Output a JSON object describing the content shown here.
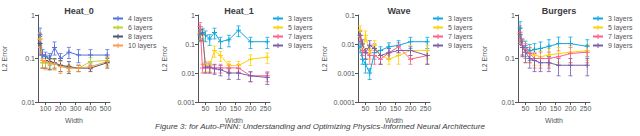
{
  "annotations": [
    "Figure 3: for Auto-PINN: Understanding and Optimizing Physics-Informed Neural Architecture"
  ],
  "chart_data": [
    {
      "type": "line",
      "title": "Heat_0",
      "xlabel": "Width",
      "ylabel": "L2 Error",
      "x": [
        64,
        80,
        100,
        128,
        160,
        200,
        256,
        320,
        400,
        512
      ],
      "series": [
        {
          "name": "4 layers",
          "values": [
            0.35,
            0.12,
            0.11,
            0.1,
            0.18,
            0.1,
            0.14,
            0.12,
            0.12,
            0.12
          ],
          "errors": [
            0.15,
            0.04,
            0.03,
            0.03,
            0.06,
            0.03,
            0.04,
            0.04,
            0.04,
            0.04
          ]
        },
        {
          "name": "6 layers",
          "values": [
            0.28,
            0.08,
            0.08,
            0.075,
            0.075,
            0.07,
            0.06,
            0.06,
            0.085,
            0.09
          ],
          "errors": [
            0.1,
            0.02,
            0.02,
            0.02,
            0.02,
            0.02,
            0.01,
            0.01,
            0.02,
            0.02
          ]
        },
        {
          "name": "8 layers",
          "values": [
            0.22,
            0.09,
            0.09,
            0.085,
            0.08,
            0.07,
            0.065,
            0.06,
            0.06,
            0.08
          ],
          "errors": [
            0.1,
            0.03,
            0.03,
            0.03,
            0.02,
            0.02,
            0.02,
            0.01,
            0.01,
            0.02
          ]
        },
        {
          "name": "10 layers",
          "values": [
            0.28,
            0.09,
            0.085,
            0.08,
            0.075,
            0.065,
            0.06,
            0.06,
            0.065,
            0.085
          ],
          "errors": [
            0.1,
            0.03,
            0.03,
            0.02,
            0.02,
            0.02,
            0.01,
            0.01,
            0.01,
            0.02
          ]
        }
      ],
      "xlim": [
        50,
        530
      ],
      "xticks": [
        100,
        200,
        300,
        400,
        500
      ],
      "ylim": [
        0.01,
        1
      ],
      "yticks": [
        0.01,
        0.1,
        1
      ],
      "log": "y",
      "grid": false,
      "legend": "upper right",
      "marker": "plus"
    },
    {
      "type": "line",
      "title": "Heat_1",
      "xlabel": "Width",
      "ylabel": "L2 Error",
      "x": [
        32,
        40,
        50,
        64,
        80,
        100,
        128,
        160,
        200,
        256
      ],
      "series": [
        {
          "name": "3 layers",
          "values": [
            0.2,
            0.25,
            0.2,
            0.15,
            0.25,
            0.12,
            0.14,
            0.3,
            0.12,
            0.12
          ],
          "errors": [
            0.08,
            0.1,
            0.08,
            0.06,
            0.1,
            0.05,
            0.06,
            0.12,
            0.05,
            0.05
          ]
        },
        {
          "name": "5 layers",
          "values": [
            0.22,
            0.2,
            0.018,
            0.018,
            0.06,
            0.04,
            0.018,
            0.018,
            0.03,
            0.035
          ],
          "errors": [
            0.09,
            0.08,
            0.007,
            0.007,
            0.025,
            0.015,
            0.007,
            0.007,
            0.012,
            0.014
          ]
        },
        {
          "name": "7 layers",
          "values": [
            0.4,
            0.015,
            0.015,
            0.015,
            0.015,
            0.015,
            0.015,
            0.015,
            0.008,
            0.008
          ],
          "errors": [
            0.15,
            0.005,
            0.005,
            0.005,
            0.005,
            0.005,
            0.005,
            0.005,
            0.003,
            0.003
          ]
        },
        {
          "name": "9 layers",
          "values": [
            0.22,
            0.22,
            0.016,
            0.016,
            0.014,
            0.013,
            0.01,
            0.01,
            0.008,
            0.007
          ],
          "errors": [
            0.09,
            0.09,
            0.006,
            0.006,
            0.005,
            0.005,
            0.004,
            0.004,
            0.003,
            0.003
          ]
        }
      ],
      "xlim": [
        25,
        265
      ],
      "xticks": [
        50,
        100,
        150,
        200,
        250
      ],
      "ylim": [
        0.001,
        1
      ],
      "yticks": [
        0.001,
        0.01,
        0.1,
        1
      ],
      "log": "y",
      "grid": false,
      "legend": "upper right",
      "marker": "plus"
    },
    {
      "type": "line",
      "title": "Wave",
      "xlabel": "Width",
      "ylabel": "L2 Error",
      "x": [
        32,
        40,
        50,
        64,
        80,
        100,
        128,
        160,
        200,
        256
      ],
      "series": [
        {
          "name": "3 layers",
          "values": [
            0.008,
            0.003,
            0.002,
            0.001,
            0.005,
            0.006,
            0.008,
            0.009,
            0.012,
            0.012
          ],
          "errors": [
            0.003,
            0.001,
            0.001,
            0.0004,
            0.002,
            0.002,
            0.003,
            0.004,
            0.005,
            0.005
          ]
        },
        {
          "name": "5 layers",
          "values": [
            0.03,
            0.007,
            0.02,
            0.005,
            0.009,
            0.004,
            0.003,
            0.004,
            0.006,
            0.006
          ],
          "errors": [
            0.012,
            0.003,
            0.008,
            0.002,
            0.004,
            0.002,
            0.001,
            0.002,
            0.003,
            0.003
          ]
        },
        {
          "name": "7 layers",
          "values": [
            0.02,
            0.006,
            0.005,
            0.004,
            0.004,
            0.003,
            0.005,
            0.008,
            0.003,
            0.004
          ],
          "errors": [
            0.008,
            0.002,
            0.002,
            0.002,
            0.002,
            0.001,
            0.002,
            0.003,
            0.001,
            0.002
          ]
        },
        {
          "name": "9 layers",
          "values": [
            0.02,
            0.01,
            0.005,
            0.009,
            0.007,
            0.004,
            0.005,
            0.006,
            0.006,
            0.004
          ],
          "errors": [
            0.008,
            0.004,
            0.002,
            0.004,
            0.003,
            0.002,
            0.002,
            0.002,
            0.002,
            0.002
          ]
        }
      ],
      "xlim": [
        25,
        265
      ],
      "xticks": [
        50,
        100,
        150,
        200,
        250
      ],
      "ylim": [
        0.0001,
        0.1
      ],
      "yticks": [
        0.0001,
        0.001,
        0.01,
        0.1
      ],
      "log": "y",
      "grid": false,
      "legend": "upper right",
      "marker": "plus"
    },
    {
      "type": "line",
      "title": "Burgers",
      "xlabel": "Width",
      "ylabel": "L2 Error",
      "x": [
        32,
        40,
        50,
        64,
        80,
        100,
        128,
        160,
        200,
        256
      ],
      "series": [
        {
          "name": "3 layers",
          "values": [
            0.5,
            0.2,
            0.18,
            0.15,
            0.16,
            0.17,
            0.19,
            0.22,
            0.22,
            0.19
          ],
          "errors": [
            0.2,
            0.08,
            0.07,
            0.06,
            0.06,
            0.07,
            0.08,
            0.09,
            0.09,
            0.08
          ]
        },
        {
          "name": "5 layers",
          "values": [
            0.35,
            0.18,
            0.14,
            0.13,
            0.12,
            0.11,
            0.12,
            0.13,
            0.14,
            0.15
          ],
          "errors": [
            0.14,
            0.07,
            0.06,
            0.05,
            0.05,
            0.04,
            0.05,
            0.05,
            0.06,
            0.06
          ]
        },
        {
          "name": "7 layers",
          "values": [
            0.4,
            0.2,
            0.16,
            0.13,
            0.1,
            0.1,
            0.1,
            0.11,
            0.13,
            0.14
          ],
          "errors": [
            0.16,
            0.08,
            0.06,
            0.05,
            0.04,
            0.04,
            0.04,
            0.04,
            0.05,
            0.06
          ]
        },
        {
          "name": "9 layers",
          "values": [
            0.35,
            0.18,
            0.14,
            0.1,
            0.09,
            0.08,
            0.08,
            0.07,
            0.07,
            0.07
          ],
          "errors": [
            0.14,
            0.07,
            0.06,
            0.04,
            0.04,
            0.03,
            0.03,
            0.03,
            0.03,
            0.03
          ]
        }
      ],
      "xlim": [
        25,
        265
      ],
      "xticks": [
        50,
        100,
        150,
        200,
        250
      ],
      "ylim": [
        0.01,
        1
      ],
      "yticks": [
        0.01,
        0.1,
        1
      ],
      "log": "y",
      "grid": false,
      "legend": "upper right",
      "marker": "plus"
    }
  ]
}
